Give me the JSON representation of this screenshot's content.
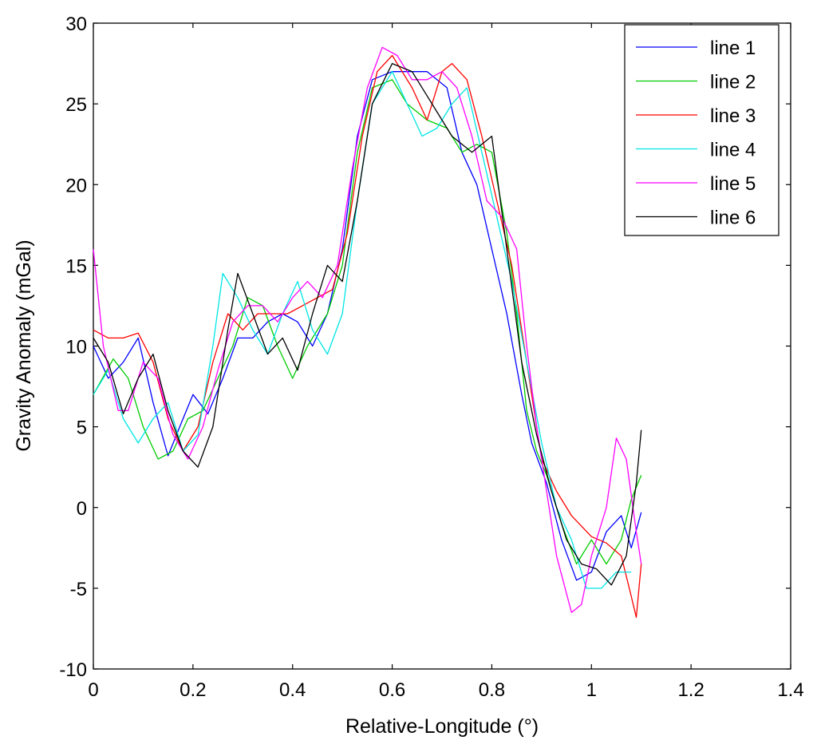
{
  "chart_data": {
    "type": "line",
    "title": "",
    "xlabel": "Relative-Longitude (°)",
    "ylabel": "Gravity Anomaly (mGal)",
    "xlim": [
      0,
      1.4
    ],
    "ylim": [
      -10,
      30
    ],
    "xticks": [
      0,
      0.2,
      0.4,
      0.6,
      0.8,
      1,
      1.2,
      1.4
    ],
    "xtick_labels": [
      "0",
      "0.2",
      "0.4",
      "0.6",
      "0.8",
      "1",
      "1.2",
      "1.4"
    ],
    "yticks": [
      -10,
      -5,
      0,
      5,
      10,
      15,
      20,
      25,
      30
    ],
    "ytick_labels": [
      "-10",
      "-5",
      "0",
      "5",
      "10",
      "15",
      "20",
      "25",
      "30"
    ],
    "grid": false,
    "legend_position": "top-right",
    "series": [
      {
        "name": "line 1",
        "color": "#0000ff",
        "x": [
          0,
          0.03,
          0.06,
          0.09,
          0.12,
          0.15,
          0.18,
          0.2,
          0.23,
          0.26,
          0.29,
          0.32,
          0.35,
          0.38,
          0.41,
          0.44,
          0.47,
          0.5,
          0.53,
          0.56,
          0.6,
          0.63,
          0.67,
          0.71,
          0.74,
          0.77,
          0.8,
          0.83,
          0.86,
          0.88,
          0.91,
          0.94,
          0.97,
          1,
          1.03,
          1.06,
          1.08,
          1.1
        ],
        "y": [
          10,
          8,
          9,
          10.5,
          6.5,
          3.2,
          5.5,
          7,
          5.8,
          8,
          10.5,
          10.5,
          11.5,
          12,
          11.5,
          10,
          12,
          16,
          23,
          26.5,
          27,
          27,
          27,
          26,
          22,
          20,
          16,
          12,
          7,
          4,
          1.5,
          -2,
          -4.5,
          -4,
          -1.5,
          -0.5,
          -2.5,
          -0.3
        ]
      },
      {
        "name": "line 2",
        "color": "#00cc00",
        "x": [
          0,
          0.04,
          0.07,
          0.1,
          0.13,
          0.16,
          0.19,
          0.22,
          0.25,
          0.28,
          0.31,
          0.34,
          0.37,
          0.4,
          0.43,
          0.47,
          0.5,
          0.53,
          0.56,
          0.6,
          0.63,
          0.67,
          0.71,
          0.74,
          0.77,
          0.8,
          0.83,
          0.85,
          0.87,
          0.89,
          0.91,
          0.94,
          0.97,
          1,
          1.03,
          1.06,
          1.08,
          1.1
        ],
        "y": [
          7,
          9.2,
          8,
          5,
          3,
          3.5,
          5.5,
          6,
          8,
          10,
          13,
          12.5,
          10,
          8,
          10,
          12,
          15,
          22,
          26,
          26.5,
          25,
          24,
          23.5,
          22,
          22.5,
          22,
          17,
          12,
          6,
          3.5,
          2,
          -1,
          -3.5,
          -2,
          -3.5,
          -2,
          0.5,
          2
        ]
      },
      {
        "name": "line 3",
        "color": "#ff0000",
        "x": [
          0,
          0.03,
          0.06,
          0.09,
          0.12,
          0.15,
          0.18,
          0.21,
          0.24,
          0.27,
          0.3,
          0.33,
          0.36,
          0.39,
          0.42,
          0.45,
          0.48,
          0.51,
          0.54,
          0.57,
          0.6,
          0.64,
          0.67,
          0.7,
          0.72,
          0.75,
          0.78,
          0.81,
          0.84,
          0.87,
          0.9,
          0.93,
          0.96,
          1,
          1.03,
          1.06,
          1.08,
          1.09,
          1.1
        ],
        "y": [
          11,
          10.5,
          10.5,
          10.8,
          9,
          5.5,
          3.5,
          5,
          9,
          12,
          11,
          12,
          12,
          12,
          12.5,
          13,
          13.5,
          17,
          23,
          27,
          28,
          26,
          24,
          27,
          27.5,
          26.5,
          23,
          19,
          15,
          9,
          3,
          1,
          -0.5,
          -1.8,
          -2.2,
          -3,
          -5.5,
          -6.8,
          -3.5
        ]
      },
      {
        "name": "line 4",
        "color": "#00e5e5",
        "x": [
          0,
          0.03,
          0.06,
          0.09,
          0.12,
          0.15,
          0.18,
          0.21,
          0.24,
          0.26,
          0.29,
          0.32,
          0.35,
          0.38,
          0.41,
          0.44,
          0.47,
          0.5,
          0.53,
          0.56,
          0.6,
          0.63,
          0.66,
          0.69,
          0.72,
          0.75,
          0.78,
          0.81,
          0.84,
          0.87,
          0.9,
          0.93,
          0.96,
          0.99,
          1.02,
          1.05,
          1.08
        ],
        "y": [
          7,
          8.5,
          5.5,
          4,
          5.5,
          6.5,
          3.5,
          4.5,
          10,
          14.5,
          13,
          11,
          9.5,
          12,
          14,
          11,
          9.5,
          12,
          19,
          25,
          27,
          25,
          23,
          23.5,
          25,
          26,
          22,
          18,
          14,
          9,
          4,
          0,
          -2,
          -5,
          -5,
          -4,
          -4
        ]
      },
      {
        "name": "line 5",
        "color": "#ff00ff",
        "x": [
          0,
          0.02,
          0.05,
          0.07,
          0.1,
          0.13,
          0.16,
          0.19,
          0.22,
          0.25,
          0.28,
          0.31,
          0.34,
          0.37,
          0.4,
          0.43,
          0.46,
          0.49,
          0.52,
          0.55,
          0.58,
          0.61,
          0.64,
          0.67,
          0.7,
          0.73,
          0.76,
          0.79,
          0.82,
          0.85,
          0.87,
          0.89,
          0.91,
          0.93,
          0.96,
          0.98,
          1,
          1.03,
          1.05,
          1.07,
          1.09,
          1.1
        ],
        "y": [
          16,
          10,
          6,
          6,
          9,
          8,
          4.5,
          3,
          5,
          8.5,
          11.5,
          12.5,
          12.5,
          11.5,
          13,
          14,
          13,
          15,
          21,
          26,
          28.5,
          28,
          26.5,
          26.5,
          27,
          26,
          23,
          19,
          18,
          16,
          10,
          5,
          1,
          -3,
          -6.5,
          -6,
          -3,
          0,
          4.3,
          3,
          -1.5,
          -3.5
        ]
      },
      {
        "name": "line 6",
        "color": "#000000",
        "x": [
          0,
          0.03,
          0.06,
          0.09,
          0.12,
          0.15,
          0.18,
          0.21,
          0.24,
          0.27,
          0.29,
          0.32,
          0.35,
          0.38,
          0.41,
          0.44,
          0.47,
          0.5,
          0.53,
          0.56,
          0.6,
          0.64,
          0.68,
          0.72,
          0.76,
          0.8,
          0.83,
          0.86,
          0.89,
          0.92,
          0.95,
          0.98,
          1.01,
          1.04,
          1.07,
          1.09,
          1.1
        ],
        "y": [
          10.5,
          9,
          5.8,
          8,
          9.5,
          6,
          3.5,
          2.5,
          5,
          11,
          14.5,
          12,
          9.5,
          10.5,
          8.5,
          12,
          15,
          14,
          19,
          25,
          27.5,
          27,
          25,
          23,
          22,
          23,
          16,
          9,
          4.5,
          1,
          -2,
          -3.5,
          -3.8,
          -4.8,
          -3,
          1.5,
          4.8
        ]
      }
    ]
  }
}
